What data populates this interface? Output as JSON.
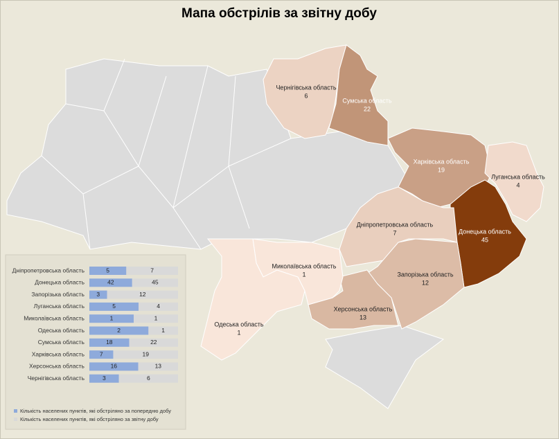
{
  "title": "Мапа обстрілів за звітну добу",
  "map": {
    "color_scale": [
      "#f9e6da",
      "#843c0c"
    ],
    "regions": [
      {
        "name": "Чернігівська область",
        "value": 6
      },
      {
        "name": "Сумська область",
        "value": 22
      },
      {
        "name": "Харківська область",
        "value": 19
      },
      {
        "name": "Луганська область",
        "value": 4
      },
      {
        "name": "Донецька область",
        "value": 45
      },
      {
        "name": "Дніпропетровська область",
        "value": 7
      },
      {
        "name": "Запорізька область",
        "value": 12
      },
      {
        "name": "Херсонська область",
        "value": 13
      },
      {
        "name": "Миколаївська область",
        "value": 1
      },
      {
        "name": "Одеська область",
        "value": 1
      }
    ]
  },
  "chart_data": {
    "type": "bar",
    "stacked_percent": true,
    "categories": [
      "Дніпропетровська область",
      "Донецька область",
      "Запорізька область",
      "Луганська область",
      "Миколаївська область",
      "Одеська область",
      "Сумська область",
      "Харківська область",
      "Херсонська область",
      "Чернігівська область"
    ],
    "series": [
      {
        "name": "Кількість населених пунктів, які обстріляно за попередню добу",
        "color": "#8eaadb",
        "values": [
          5,
          42,
          3,
          5,
          1,
          2,
          18,
          7,
          16,
          3
        ]
      },
      {
        "name": "Кількість населених пунктів, які обстріляно за звітну добу",
        "color": "#d9d9d9",
        "values": [
          7,
          45,
          12,
          4,
          1,
          1,
          22,
          19,
          13,
          6
        ]
      }
    ]
  }
}
